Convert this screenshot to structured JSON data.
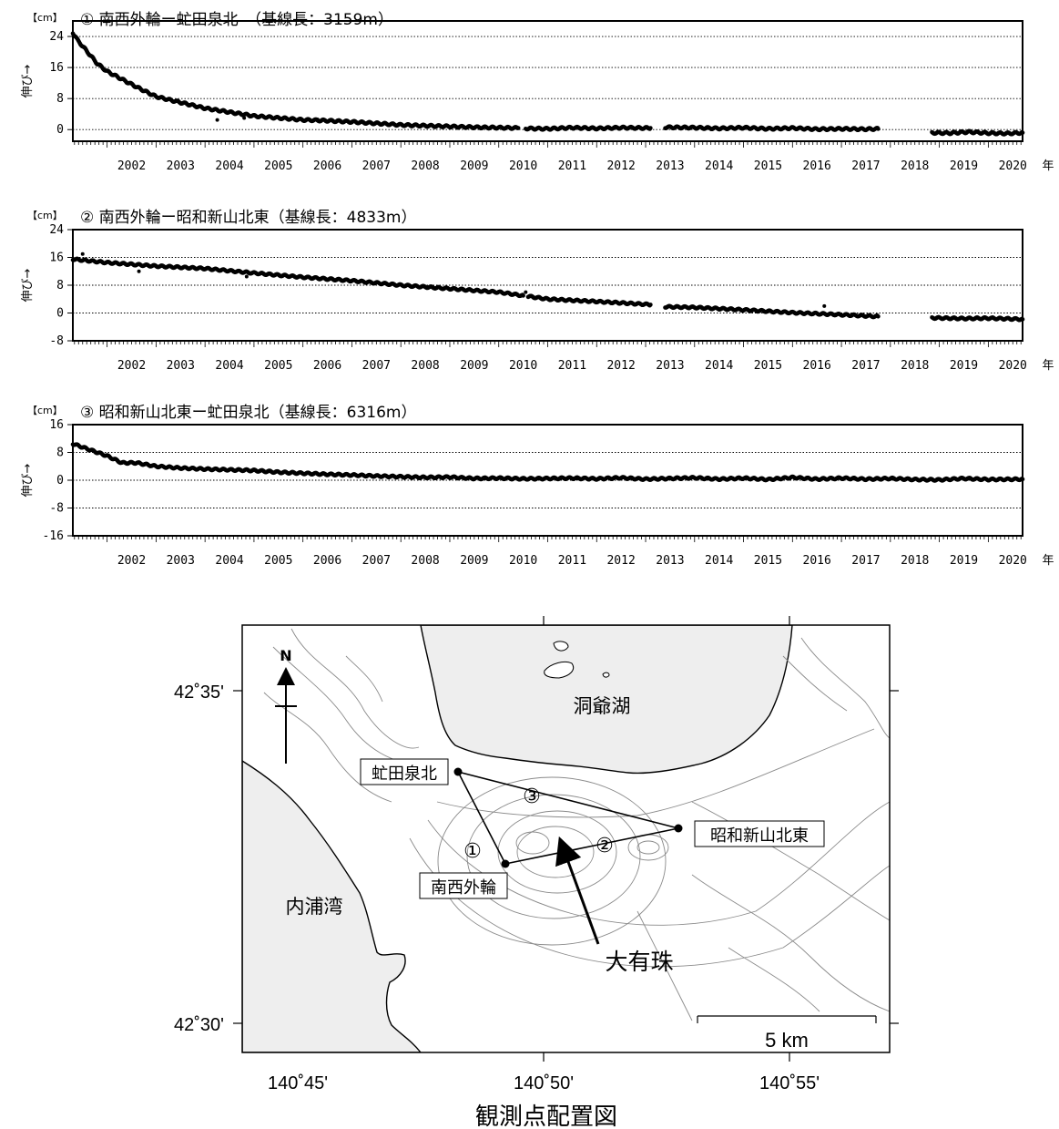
{
  "chart_data": [
    {
      "type": "scatter",
      "unit_label": "【cm】",
      "title": "① 南西外輪ー虻田泉北　（基線長：3159m）",
      "ylabel": "伸び→",
      "xlabel": "年",
      "xlim": [
        2001.3,
        2020.7
      ],
      "ylim": [
        -3,
        28
      ],
      "yticks": [
        24,
        16,
        8,
        0
      ],
      "year_ticks": [
        2002,
        2003,
        2004,
        2005,
        2006,
        2007,
        2008,
        2009,
        2010,
        2011,
        2012,
        2013,
        2014,
        2015,
        2016,
        2017,
        2018,
        2019,
        2020
      ],
      "gridlines": [
        24,
        16,
        8,
        0
      ],
      "series": [
        {
          "x": [
            2001.3,
            2001.4,
            2001.6,
            2001.8,
            2002.0,
            2002.3,
            2002.6,
            2003.0,
            2003.5,
            2004.0,
            2004.5,
            2005.0,
            2005.5,
            2006.0,
            2006.5,
            2007.0,
            2007.5,
            2008.0,
            2008.5,
            2009.0,
            2009.5,
            2010.0,
            2010.4
          ],
          "y": [
            25,
            23,
            20,
            17,
            15,
            13,
            11,
            8.5,
            7,
            5.5,
            4.5,
            3.5,
            3,
            2.5,
            2.3,
            2,
            1.6,
            1.2,
            1,
            0.8,
            0.6,
            0.5,
            0.4
          ]
        },
        {
          "x": [
            2010.55,
            2011.0,
            2011.5,
            2012.0,
            2012.5,
            2013.0,
            2013.1
          ],
          "y": [
            0.3,
            0.2,
            0.5,
            0.3,
            0.5,
            0.4,
            0.4
          ]
        },
        {
          "x": [
            2013.4,
            2014.0,
            2014.5,
            2015.0,
            2015.5,
            2016.0,
            2016.5,
            2017.0,
            2017.5,
            2017.75
          ],
          "y": [
            0.6,
            0.5,
            0.3,
            0.5,
            0.2,
            0.4,
            0.1,
            0.2,
            0.1,
            0.2
          ]
        },
        {
          "x": [
            2018.85,
            2019.2,
            2019.6,
            2020.0,
            2020.4,
            2020.7
          ],
          "y": [
            -0.8,
            -0.9,
            -0.6,
            -0.9,
            -1.0,
            -0.8
          ]
        }
      ],
      "outliers": {
        "x": [
          2004.25,
          2004.8,
          2006.3
        ],
        "y": [
          2.5,
          3,
          2.6
        ]
      }
    },
    {
      "type": "scatter",
      "unit_label": "【cm】",
      "title": "② 南西外輪ー昭和新山北東（基線長：4833m）",
      "ylabel": "伸び→",
      "xlabel": "年",
      "xlim": [
        2001.3,
        2020.7
      ],
      "ylim": [
        -8,
        24
      ],
      "yticks": [
        24,
        16,
        8,
        0,
        -8
      ],
      "year_ticks": [
        2002,
        2003,
        2004,
        2005,
        2006,
        2007,
        2008,
        2009,
        2010,
        2011,
        2012,
        2013,
        2014,
        2015,
        2016,
        2017,
        2018,
        2019,
        2020
      ],
      "gridlines": [
        16,
        8,
        0
      ],
      "series": [
        {
          "x": [
            2001.3,
            2002.0,
            2003.0,
            2004.0,
            2005.0,
            2006.0,
            2007.0,
            2008.0,
            2009.0,
            2010.0,
            2010.5
          ],
          "y": [
            15.5,
            14.5,
            13.5,
            12.8,
            11.5,
            10.3,
            9.3,
            8,
            7,
            6,
            5
          ]
        },
        {
          "x": [
            2010.6,
            2011.0,
            2012.0,
            2013.0,
            2013.1
          ],
          "y": [
            4.8,
            4,
            3.3,
            2.5,
            2.4
          ]
        },
        {
          "x": [
            2013.4,
            2014.0,
            2015.0,
            2016.0,
            2017.0,
            2017.75
          ],
          "y": [
            1.8,
            1.6,
            0.9,
            0.1,
            -0.5,
            -1.0
          ]
        },
        {
          "x": [
            2018.85,
            2019.5,
            2020.0,
            2020.7
          ],
          "y": [
            -1.4,
            -1.6,
            -1.5,
            -1.8
          ]
        }
      ],
      "outliers": {
        "x": [
          2001.5,
          2002.65,
          2004.85,
          2010.55,
          2016.65
        ],
        "y": [
          17,
          12,
          10.5,
          6,
          2
        ]
      }
    },
    {
      "type": "scatter",
      "unit_label": "【cm】",
      "title": "③ 昭和新山北東ー虻田泉北（基線長：6316m）",
      "ylabel": "伸び→",
      "xlabel": "年",
      "xlim": [
        2001.3,
        2020.7
      ],
      "ylim": [
        -16,
        16
      ],
      "yticks": [
        16,
        8,
        0,
        -8,
        -16
      ],
      "year_ticks": [
        2002,
        2003,
        2004,
        2005,
        2006,
        2007,
        2008,
        2009,
        2010,
        2011,
        2012,
        2013,
        2014,
        2015,
        2016,
        2017,
        2018,
        2019,
        2020
      ],
      "gridlines": [
        8,
        0,
        -8
      ],
      "series": [
        {
          "x": [
            2001.3,
            2001.6,
            2002.0,
            2002.3,
            2002.6,
            2003.0,
            2003.5,
            2004.0,
            2004.5,
            2005.0,
            2005.5,
            2006.0,
            2006.5,
            2007.0,
            2007.5,
            2008.0,
            2008.5,
            2009.0,
            2009.5,
            2010.0,
            2010.5,
            2011.0,
            2011.5,
            2012.0,
            2012.5,
            2013.0,
            2013.5,
            2014.0,
            2014.5,
            2015.0,
            2015.5,
            2016.0,
            2016.5,
            2017.0,
            2017.5,
            2018.0,
            2018.5,
            2019.0,
            2019.5,
            2020.0,
            2020.7
          ],
          "y": [
            10.5,
            9,
            7,
            5,
            5,
            4,
            3.5,
            3.2,
            3,
            2.8,
            2.3,
            2,
            1.7,
            1.5,
            1.2,
            1,
            0.8,
            0.9,
            0.5,
            0.6,
            0.4,
            0.5,
            0.6,
            0.4,
            0.7,
            0.3,
            0.5,
            0.7,
            0.3,
            0.6,
            0.2,
            0.8,
            0.3,
            0.6,
            0.3,
            0.5,
            0.2,
            0.1,
            0.5,
            0.2,
            0.3
          ]
        }
      ],
      "outliers": {
        "x": [],
        "y": []
      }
    }
  ],
  "map": {
    "lat_labels": [
      "42˚35'",
      "42˚30'"
    ],
    "lon_labels": [
      "140˚45'",
      "140˚50'",
      "140˚55'"
    ],
    "north_label": "N",
    "lake_label": "洞爺湖",
    "bay_label": "内浦湾",
    "volcano_label": "大有珠",
    "stations": {
      "abuta": "虻田泉北",
      "showa": "昭和新山北東",
      "nansei": "南西外輪"
    },
    "baseline_labels": [
      "①",
      "②",
      "③"
    ],
    "scale_label": "5 km",
    "caption": "観測点配置図"
  }
}
